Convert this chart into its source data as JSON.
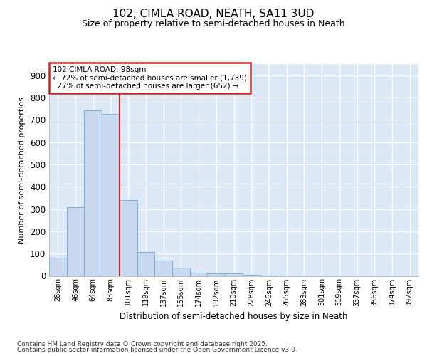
{
  "title1": "102, CIMLA ROAD, NEATH, SA11 3UD",
  "title2": "Size of property relative to semi-detached houses in Neath",
  "xlabel": "Distribution of semi-detached houses by size in Neath",
  "ylabel": "Number of semi-detached properties",
  "bar_labels": [
    "28sqm",
    "46sqm",
    "64sqm",
    "83sqm",
    "101sqm",
    "119sqm",
    "137sqm",
    "155sqm",
    "174sqm",
    "192sqm",
    "210sqm",
    "228sqm",
    "246sqm",
    "265sqm",
    "283sqm",
    "301sqm",
    "319sqm",
    "337sqm",
    "356sqm",
    "374sqm",
    "392sqm"
  ],
  "bar_values": [
    80,
    307,
    743,
    728,
    340,
    108,
    70,
    38,
    15,
    12,
    10,
    4,
    2,
    0,
    0,
    0,
    0,
    0,
    0,
    0,
    0
  ],
  "bar_color": "#c8d8ee",
  "bar_edgecolor": "#7aaed6",
  "vline_index": 4,
  "vline_color": "#cc2222",
  "annotation_title": "102 CIMLA ROAD: 98sqm",
  "annotation_line1": "← 72% of semi-detached houses are smaller (1,739)",
  "annotation_line2": "  27% of semi-detached houses are larger (652) →",
  "annotation_box_color": "#cc2222",
  "ylim": [
    0,
    950
  ],
  "yticks": [
    0,
    100,
    200,
    300,
    400,
    500,
    600,
    700,
    800,
    900
  ],
  "bg_color": "#ffffff",
  "plot_bg_color": "#dce8f5",
  "grid_color": "#ffffff",
  "footer1": "Contains HM Land Registry data © Crown copyright and database right 2025.",
  "footer2": "Contains public sector information licensed under the Open Government Licence v3.0."
}
